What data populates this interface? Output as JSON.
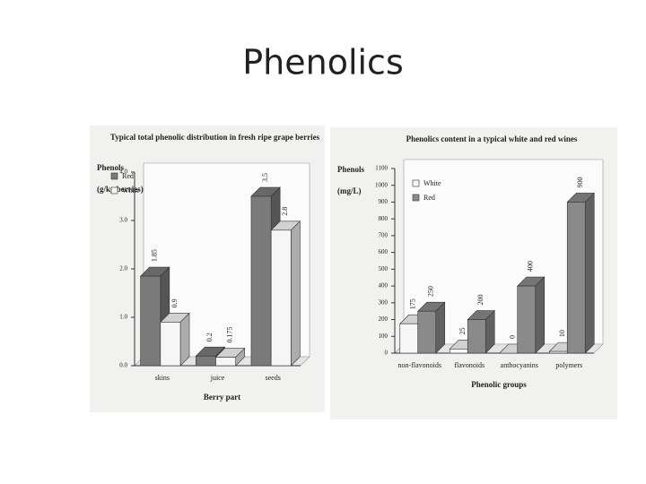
{
  "title": "Phenolics",
  "chart_data": [
    {
      "type": "bar",
      "title": "Typical total phenolic distribution in fresh ripe grape berries",
      "y_label": [
        "Phenols",
        "(g/kg berries)"
      ],
      "x_label": "Berry part",
      "categories": [
        "skins",
        "juice",
        "seeds"
      ],
      "series": [
        {
          "name": "Red",
          "color": "#7a7a7a",
          "values": [
            1.85,
            0.2,
            3.5
          ]
        },
        {
          "name": "White",
          "color": "#f6f6f6",
          "values": [
            0.9,
            0.175,
            2.8
          ]
        }
      ],
      "ylim": [
        0,
        4
      ],
      "yticks": [
        {
          "value": 0,
          "label": "0.0"
        },
        {
          "value": 1,
          "label": "1.0"
        },
        {
          "value": 2,
          "label": "2.0"
        },
        {
          "value": 3,
          "label": "3.0"
        },
        {
          "value": 4,
          "label": "4.0"
        }
      ]
    },
    {
      "type": "bar",
      "title": "Phenolics content in a typical white and red wines",
      "y_label": [
        "Phenols",
        "(mg/L)"
      ],
      "x_label": "Phenolic groups",
      "categories": [
        "non-flavonoids",
        "flavonoids",
        "anthocyanins",
        "polymers"
      ],
      "series": [
        {
          "name": "White",
          "color": "#f6f6f6",
          "values": [
            175,
            25,
            0,
            10
          ]
        },
        {
          "name": "Red",
          "color": "#8a8a8a",
          "values": [
            250,
            200,
            400,
            900
          ]
        }
      ],
      "ylim": [
        0,
        1100
      ],
      "yticks": [
        0,
        100,
        200,
        300,
        400,
        500,
        600,
        700,
        800,
        900,
        1000,
        1100
      ]
    }
  ]
}
